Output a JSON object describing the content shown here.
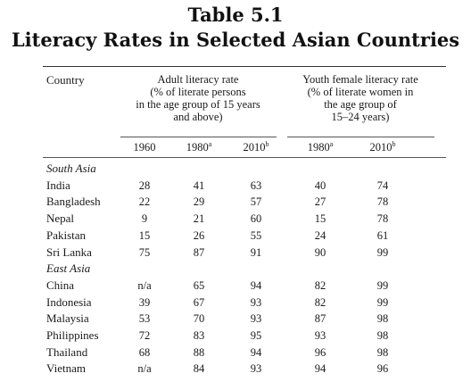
{
  "title_line1": "Table 5.1",
  "title_line2": "Literacy Rates in Selected Asian Countries",
  "headers": {
    "country": "Country",
    "adult_group": "Adult literacy rate\n(% of literate persons\nin the age group of 15 years\nand above)",
    "youth_group": "Youth female literacy rate\n(% of literate women in\nthe age group of\n15–24 years)",
    "years": [
      {
        "label": "1960",
        "note": ""
      },
      {
        "label": "1980",
        "note": "a"
      },
      {
        "label": "2010",
        "note": "b"
      },
      {
        "label": "1980",
        "note": "a"
      },
      {
        "label": "2010",
        "note": "b"
      }
    ]
  },
  "groups": [
    {
      "name": "South Asia",
      "rows": [
        {
          "country": "India",
          "values": [
            "28",
            "41",
            "63",
            "40",
            "74"
          ]
        },
        {
          "country": "Bangladesh",
          "values": [
            "22",
            "29",
            "57",
            "27",
            "78"
          ]
        },
        {
          "country": "Nepal",
          "values": [
            "9",
            "21",
            "60",
            "15",
            "78"
          ]
        },
        {
          "country": "Pakistan",
          "values": [
            "15",
            "26",
            "55",
            "24",
            "61"
          ]
        },
        {
          "country": "Sri Lanka",
          "values": [
            "75",
            "87",
            "91",
            "90",
            "99"
          ]
        }
      ]
    },
    {
      "name": "East Asia",
      "rows": [
        {
          "country": "China",
          "values": [
            "n/a",
            "65",
            "94",
            "82",
            "99"
          ]
        },
        {
          "country": "Indonesia",
          "values": [
            "39",
            "67",
            "93",
            "82",
            "99"
          ]
        },
        {
          "country": "Malaysia",
          "values": [
            "53",
            "70",
            "93",
            "87",
            "98"
          ]
        },
        {
          "country": "Philippines",
          "values": [
            "72",
            "83",
            "95",
            "93",
            "98"
          ]
        },
        {
          "country": "Thailand",
          "values": [
            "68",
            "88",
            "94",
            "96",
            "98"
          ]
        },
        {
          "country": "Vietnam",
          "values": [
            "n/a",
            "84",
            "93",
            "94",
            "96"
          ]
        }
      ]
    }
  ]
}
